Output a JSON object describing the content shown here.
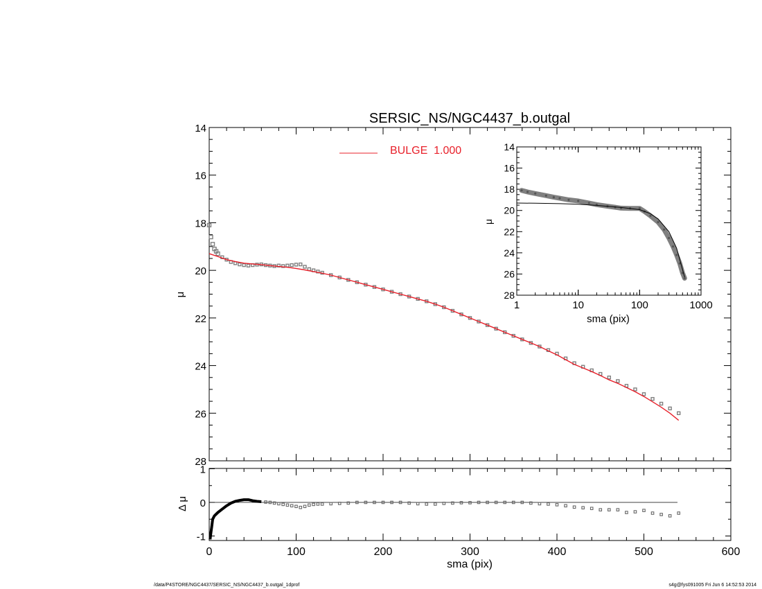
{
  "chart_data": [
    {
      "type": "scatter",
      "title": "SERSIC_NS/NGC4437_b.outgal",
      "xlabel": "",
      "ylabel": "μ",
      "xlim": [
        0,
        600
      ],
      "ylim": [
        28,
        14
      ],
      "y_inverted": true,
      "yticks": [
        "14",
        "16",
        "18",
        "20",
        "22",
        "24",
        "26",
        "28"
      ],
      "legend_location": "top-center",
      "series": [
        {
          "role": "data",
          "color": "#808080",
          "marker": "square",
          "x": [
            0,
            2,
            4,
            6,
            8,
            10,
            15,
            20,
            25,
            30,
            35,
            40,
            45,
            50,
            55,
            60,
            65,
            70,
            75,
            80,
            85,
            90,
            95,
            100,
            105,
            110,
            115,
            120,
            125,
            130,
            140,
            150,
            160,
            170,
            180,
            190,
            200,
            210,
            220,
            230,
            240,
            250,
            260,
            270,
            280,
            290,
            300,
            310,
            320,
            330,
            340,
            350,
            360,
            370,
            380,
            390,
            400,
            410,
            420,
            430,
            440,
            450,
            460,
            470,
            480,
            490,
            500,
            510,
            520,
            530,
            540
          ],
          "y": [
            18.1,
            18.6,
            18.9,
            19.1,
            19.2,
            19.3,
            19.45,
            19.55,
            19.65,
            19.7,
            19.75,
            19.78,
            19.8,
            19.78,
            19.76,
            19.75,
            19.78,
            19.8,
            19.82,
            19.8,
            19.82,
            19.8,
            19.78,
            19.76,
            19.75,
            19.85,
            19.95,
            20.0,
            20.05,
            20.1,
            20.2,
            20.3,
            20.4,
            20.5,
            20.6,
            20.7,
            20.8,
            20.9,
            21.0,
            21.1,
            21.2,
            21.3,
            21.42,
            21.55,
            21.7,
            21.85,
            22.0,
            22.15,
            22.3,
            22.45,
            22.6,
            22.75,
            22.9,
            23.05,
            23.2,
            23.35,
            23.5,
            23.7,
            23.9,
            24.05,
            24.2,
            24.35,
            24.5,
            24.65,
            24.85,
            25.0,
            25.2,
            25.4,
            25.6,
            25.8,
            26.0
          ]
        },
        {
          "role": "model",
          "name": "BULGE  1.000",
          "color": "#e8202a",
          "x": [
            0,
            10,
            20,
            30,
            40,
            50,
            60,
            70,
            80,
            90,
            100,
            110,
            120,
            130,
            140,
            150,
            160,
            170,
            180,
            190,
            200,
            210,
            220,
            230,
            240,
            250,
            260,
            270,
            280,
            290,
            300,
            310,
            320,
            330,
            340,
            350,
            360,
            370,
            380,
            390,
            400,
            410,
            420,
            430,
            440,
            450,
            460,
            470,
            480,
            490,
            500,
            510,
            520,
            530,
            540
          ],
          "y": [
            19.3,
            19.42,
            19.55,
            19.63,
            19.7,
            19.73,
            19.76,
            19.8,
            19.84,
            19.87,
            19.92,
            19.98,
            20.05,
            20.12,
            20.2,
            20.3,
            20.4,
            20.5,
            20.6,
            20.7,
            20.8,
            20.9,
            21.0,
            21.1,
            21.2,
            21.3,
            21.42,
            21.55,
            21.7,
            21.85,
            22.0,
            22.15,
            22.3,
            22.45,
            22.6,
            22.75,
            22.9,
            23.05,
            23.2,
            23.38,
            23.55,
            23.75,
            23.95,
            24.1,
            24.25,
            24.42,
            24.6,
            24.75,
            24.92,
            25.1,
            25.3,
            25.52,
            25.75,
            26.0,
            26.3
          ]
        }
      ]
    },
    {
      "type": "scatter",
      "title": "",
      "xlabel": "sma (pix)",
      "ylabel": "μ",
      "xscale": "log",
      "xlim": [
        1,
        1000
      ],
      "xticks": [
        "1",
        "10",
        "100",
        "1000"
      ],
      "ylim": [
        28,
        14
      ],
      "y_inverted": true,
      "yticks": [
        "14",
        "16",
        "18",
        "20",
        "22",
        "24",
        "26",
        "28"
      ],
      "series": [
        {
          "role": "data",
          "color": "#808080",
          "x": [
            1.2,
            1.5,
            2,
            3,
            4,
            5,
            7,
            10,
            15,
            20,
            30,
            40,
            50,
            70,
            100,
            120,
            150,
            200,
            250,
            300,
            350,
            400,
            450,
            500,
            540
          ],
          "y": [
            18.1,
            18.25,
            18.4,
            18.6,
            18.75,
            18.85,
            19.0,
            19.1,
            19.3,
            19.45,
            19.6,
            19.7,
            19.78,
            19.8,
            19.8,
            20.1,
            20.5,
            21.1,
            21.8,
            22.6,
            23.4,
            24.2,
            25.0,
            25.9,
            26.4
          ]
        },
        {
          "role": "model",
          "color": "#000000",
          "x": [
            1,
            2,
            5,
            10,
            20,
            50,
            100,
            150,
            200,
            300,
            400,
            540
          ],
          "y": [
            19.3,
            19.32,
            19.36,
            19.42,
            19.52,
            19.72,
            19.92,
            20.3,
            20.8,
            22.0,
            23.55,
            26.3
          ]
        }
      ]
    },
    {
      "type": "scatter",
      "title": "",
      "xlabel": "sma (pix)",
      "ylabel": "Δ μ",
      "xlim": [
        0,
        600
      ],
      "xticks": [
        "0",
        "100",
        "200",
        "300",
        "400",
        "500",
        "600"
      ],
      "ylim": [
        -1,
        1
      ],
      "yticks": [
        "1",
        "0",
        "-1"
      ],
      "series": [
        {
          "role": "residual",
          "color": "#000000",
          "x": [
            1,
            2,
            3,
            4,
            6,
            8,
            10,
            15,
            20,
            25,
            30,
            35,
            40,
            45,
            50,
            55,
            60,
            65,
            70,
            75,
            80,
            85,
            90,
            95,
            100,
            105,
            110,
            115,
            120,
            125,
            130,
            140,
            150,
            160,
            170,
            180,
            190,
            200,
            210,
            220,
            230,
            240,
            250,
            260,
            270,
            280,
            290,
            300,
            310,
            320,
            330,
            340,
            350,
            360,
            370,
            380,
            390,
            400,
            410,
            420,
            430,
            440,
            450,
            460,
            470,
            480,
            490,
            500,
            510,
            520,
            530,
            540
          ],
          "y": [
            -1.1,
            -0.9,
            -0.7,
            -0.5,
            -0.4,
            -0.35,
            -0.3,
            -0.2,
            -0.1,
            -0.02,
            0.03,
            0.06,
            0.08,
            0.08,
            0.05,
            0.03,
            0.02,
            0.01,
            0.0,
            -0.02,
            -0.04,
            -0.06,
            -0.08,
            -0.1,
            -0.12,
            -0.15,
            -0.12,
            -0.08,
            -0.06,
            -0.05,
            -0.05,
            -0.04,
            -0.03,
            -0.02,
            0.0,
            0.0,
            0.0,
            0.0,
            0.0,
            0.0,
            -0.02,
            -0.04,
            -0.05,
            -0.05,
            -0.03,
            -0.02,
            -0.01,
            -0.01,
            0.0,
            0.0,
            0.0,
            0.0,
            0.0,
            0.0,
            -0.02,
            -0.04,
            -0.05,
            -0.07,
            -0.1,
            -0.14,
            -0.16,
            -0.18,
            -0.22,
            -0.22,
            -0.22,
            -0.3,
            -0.28,
            -0.24,
            -0.32,
            -0.36,
            -0.4,
            -0.32
          ]
        }
      ]
    }
  ],
  "footer": {
    "path": "/data/P4STORE/NGC4437/SERSIC_NS/NGC4437_b.outgal_1dprof",
    "stamp": "s4g@fys091005  Fri Jun  6 14:52:53 2014"
  }
}
